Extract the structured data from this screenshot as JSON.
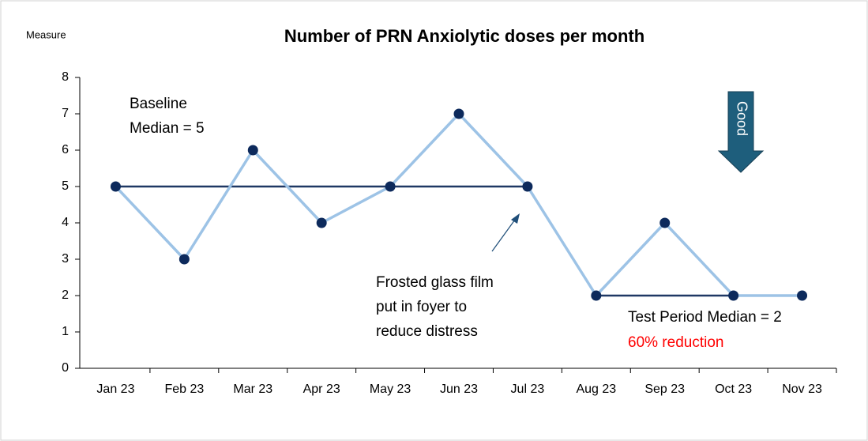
{
  "chart_data": {
    "type": "line",
    "title": "Number of PRN Anxiolytic doses per month",
    "y_label": "Measure",
    "categories": [
      "Jan 23",
      "Feb 23",
      "Mar 23",
      "Apr 23",
      "May 23",
      "Jun 23",
      "Jul 23",
      "Aug 23",
      "Sep 23",
      "Oct 23",
      "Nov 23"
    ],
    "series": [
      {
        "color": "#9dc3e6",
        "marker_color": "#0d2a5c",
        "values": [
          5,
          3,
          6,
          4,
          5,
          7,
          5,
          2,
          4,
          2,
          2
        ]
      }
    ],
    "reference_lines": [
      {
        "value": 5,
        "start": "Jan 23",
        "end": "Jul 23",
        "color": "#1f3864"
      },
      {
        "value": 2,
        "start": "Aug 23",
        "end": "Nov 23",
        "color": "#1f3864"
      }
    ],
    "ylim": [
      0,
      8
    ],
    "yticks": [
      0,
      1,
      2,
      3,
      4,
      5,
      6,
      7,
      8
    ],
    "annotations": {
      "baseline": [
        "Baseline",
        "Median = 5"
      ],
      "intervention": [
        "Frosted glass film",
        "put in foyer to",
        "reduce distress"
      ],
      "test_period": "Test Period Median = 2",
      "reduction": "60% reduction",
      "direction": "Good"
    }
  }
}
